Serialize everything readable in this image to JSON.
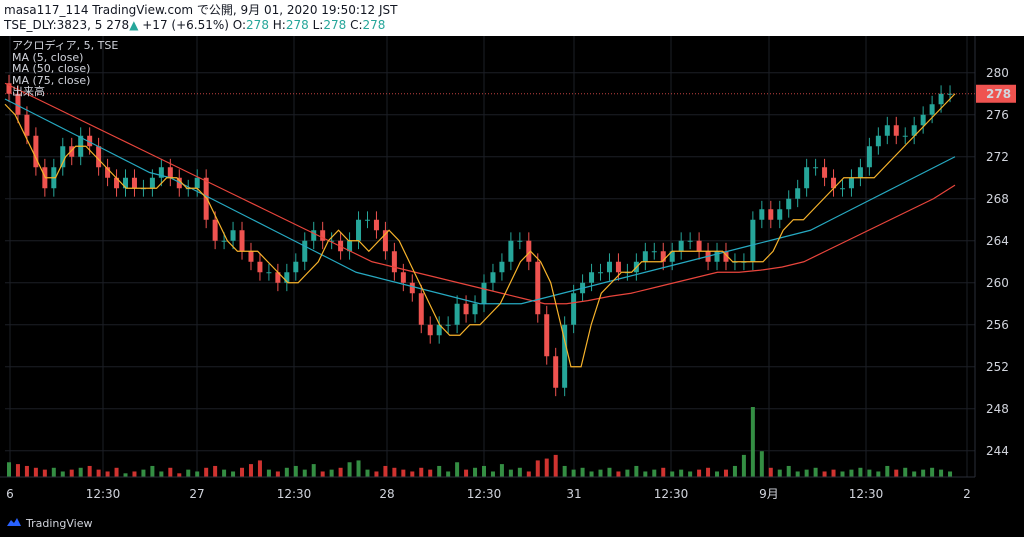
{
  "header": {
    "line1": "masa117_114 TradingView.com で公開, 9月 01, 2020 19:50:12 JST",
    "symbol": "TSE_DLY:3823, 5",
    "last": "278",
    "arrow": "▲",
    "change": "+17 (+6.51%)",
    "o_label": "O:",
    "o_value": "278",
    "h_label": "H:",
    "h_value": "278",
    "l_label": "L:",
    "l_value": "278",
    "c_label": "C:",
    "c_value": "278"
  },
  "legend": {
    "items": [
      "アクロディア, 5, TSE",
      "MA (5, close)",
      "MA (50, close)",
      "MA (75, close)",
      "出来高"
    ]
  },
  "footer": {
    "brand": "TradingView"
  },
  "colors": {
    "up": "#26a69a",
    "down": "#ef5350",
    "ma5": "#f7b32b",
    "ma50": "#26a9c1",
    "ma75": "#e8453c",
    "vol_up": "#3a9d4a",
    "vol_down": "#e53935",
    "last_bg": "#ef5350"
  },
  "chart_data": {
    "type": "candlestick",
    "y_ticks": [
      280,
      276,
      272,
      268,
      264,
      260,
      256,
      252,
      248,
      244
    ],
    "ylim": [
      241.5,
      283.5
    ],
    "x_ticks": [
      "6",
      "12:30",
      "27",
      "12:30",
      "28",
      "12:30",
      "31",
      "12:30",
      "9月",
      "12:30",
      "2"
    ],
    "last_price": "278",
    "series": [
      {
        "name": "アクロディア, 5, TSE",
        "close_path": [
          278,
          276,
          274,
          271,
          269,
          271,
          273,
          272,
          274,
          273,
          271,
          270,
          269,
          270,
          269,
          269,
          270,
          271,
          270,
          269,
          269,
          270,
          266,
          264,
          264,
          265,
          263,
          262,
          261,
          261,
          260,
          261,
          262,
          264,
          265,
          264,
          264,
          263,
          264,
          266,
          266,
          265,
          263,
          261,
          260,
          259,
          256,
          255,
          256,
          256,
          258,
          257,
          258,
          260,
          261,
          262,
          264,
          264,
          262,
          257,
          253,
          250,
          256,
          259,
          260,
          261,
          261,
          262,
          261,
          261,
          262,
          263,
          263,
          262,
          263,
          264,
          264,
          263,
          262,
          263,
          262,
          262,
          262,
          266,
          267,
          266,
          267,
          268,
          269,
          271,
          271,
          270,
          269,
          269,
          270,
          271,
          273,
          274,
          275,
          274,
          274,
          275,
          276,
          277,
          278,
          278
        ]
      },
      {
        "name": "MA (5, close)",
        "values": [
          277,
          276,
          274,
          272,
          270,
          270,
          272,
          273,
          273,
          272,
          271,
          270,
          269,
          269,
          269,
          269,
          270,
          270,
          269,
          269,
          268,
          266,
          264,
          263,
          263,
          263,
          262,
          261,
          260,
          260,
          261,
          262,
          264,
          265,
          264,
          264,
          263,
          264,
          265,
          264,
          262,
          260,
          258,
          256,
          255,
          255,
          256,
          256,
          257,
          258,
          260,
          262,
          263,
          262,
          260,
          256,
          252,
          252,
          256,
          259,
          260,
          261,
          261,
          262,
          262,
          262,
          263,
          263,
          263,
          263,
          263,
          263,
          262,
          262,
          262,
          262,
          263,
          265,
          266,
          266,
          267,
          268,
          269,
          270,
          270,
          270,
          270,
          271,
          272,
          273,
          274,
          275,
          276,
          277,
          278
        ]
      },
      {
        "name": "MA (50, close)",
        "values": [
          277.5,
          276.5,
          275.5,
          274.5,
          273.5,
          272.5,
          271.5,
          270.5,
          270,
          269,
          268,
          267,
          266,
          265,
          264,
          263,
          262,
          261,
          260.5,
          260,
          259.5,
          259,
          258.5,
          258,
          258,
          258,
          258.5,
          259,
          259.5,
          260,
          260.5,
          261,
          261.5,
          262,
          262.5,
          263,
          263.5,
          264,
          264.5,
          265,
          266,
          267,
          268,
          269,
          270,
          271,
          272
        ]
      },
      {
        "name": "MA (75, close)",
        "values": [
          279,
          278,
          277,
          276,
          275,
          274,
          273,
          272,
          271,
          270,
          269,
          268,
          267,
          266,
          265,
          264,
          263,
          262,
          261.5,
          261,
          260.5,
          260,
          259.5,
          259,
          258.5,
          258,
          258,
          258.3,
          258.7,
          259,
          259.5,
          260,
          260.5,
          261,
          261,
          261.2,
          261.5,
          262,
          263,
          264,
          265,
          266,
          267,
          268,
          269.3
        ]
      },
      {
        "name": "出来高",
        "values": [
          8,
          7,
          6,
          5,
          4,
          5,
          3,
          4,
          5,
          6,
          4,
          3,
          5,
          2,
          3,
          4,
          6,
          3,
          5,
          2,
          4,
          3,
          5,
          6,
          4,
          3,
          5,
          7,
          9,
          4,
          3,
          5,
          6,
          4,
          7,
          3,
          4,
          5,
          8,
          9,
          4,
          3,
          6,
          5,
          4,
          3,
          5,
          4,
          6,
          3,
          8,
          4,
          5,
          6,
          3,
          7,
          4,
          5,
          3,
          9,
          10,
          12,
          6,
          4,
          5,
          3,
          4,
          5,
          3,
          4,
          6,
          3,
          4,
          5,
          3,
          4,
          3,
          4,
          5,
          3,
          4,
          6,
          12,
          38,
          14,
          5,
          4,
          6,
          3,
          4,
          5,
          3,
          4,
          3,
          4,
          5,
          4,
          3,
          6,
          4,
          5,
          3,
          4,
          5,
          4,
          3
        ]
      }
    ]
  }
}
